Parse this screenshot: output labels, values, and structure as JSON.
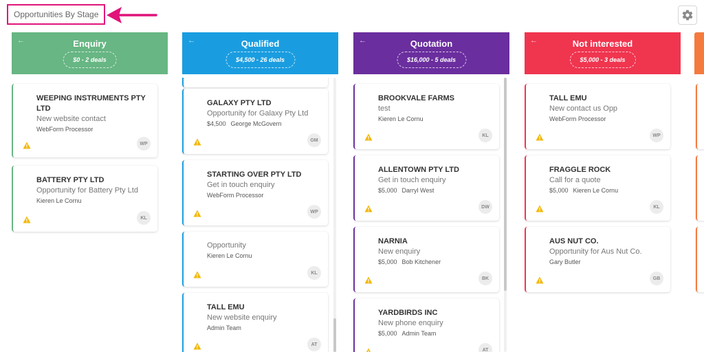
{
  "page": {
    "title": "Opportunities By Stage"
  },
  "icons": {
    "settings": "gear-icon",
    "back": "back-arrow-icon",
    "warning": "warning-icon",
    "annotation": "pointer-arrow"
  },
  "colors": {
    "enquiry": "#67b683",
    "qualified": "#1a9de0",
    "quotation": "#6a2e9e",
    "not_interested": "#f0354f",
    "next_stage": "#f47a3e",
    "annotation": "#e0147a",
    "warning": "#f2b705"
  },
  "columns": [
    {
      "title": "Enquiry",
      "summary": "$0 - 2 deals",
      "cards": [
        {
          "name": "WEEPING INSTRUMENTS PTY LTD",
          "desc": "New website contact",
          "amount": "",
          "owner": "WebForm Processor",
          "initials": "WP"
        },
        {
          "name": "BATTERY PTY LTD",
          "desc": "Opportunity for Battery Pty Ltd",
          "amount": "",
          "owner": "Kieren Le Cornu",
          "initials": "KL"
        }
      ]
    },
    {
      "title": "Qualified",
      "summary": "$4,500 - 26 deals",
      "cards": [
        {
          "name": "GALAXY PTY LTD",
          "desc": "Opportunity for Galaxy Pty Ltd",
          "amount": "$4,500",
          "owner": "George McGovern",
          "initials": "GM"
        },
        {
          "name": "STARTING OVER PTY LTD",
          "desc": "Get in touch enquiry",
          "amount": "",
          "owner": "WebForm Processor",
          "initials": "WP"
        },
        {
          "name": "",
          "desc": "Opportunity",
          "amount": "",
          "owner": "Kieren Le Cornu",
          "initials": "KL"
        },
        {
          "name": "TALL EMU",
          "desc": "New website enquiry",
          "amount": "",
          "owner": "Admin Team",
          "initials": "AT"
        }
      ]
    },
    {
      "title": "Quotation",
      "summary": "$16,000 - 5 deals",
      "cards": [
        {
          "name": "BROOKVALE FARMS",
          "desc": "test",
          "amount": "",
          "owner": "Kieren Le Cornu",
          "initials": "KL"
        },
        {
          "name": "ALLENTOWN PTY LTD",
          "desc": "Get in touch enquiry",
          "amount": "$5,000",
          "owner": "Darryl West",
          "initials": "DW"
        },
        {
          "name": "NARNIA",
          "desc": "New enquiry",
          "amount": "$5,000",
          "owner": "Bob Kitchener",
          "initials": "BK"
        },
        {
          "name": "YARDBIRDS INC",
          "desc": "New phone enquiry",
          "amount": "$5,000",
          "owner": "Admin Team",
          "initials": "AT"
        }
      ]
    },
    {
      "title": "Not interested",
      "summary": "$5,000 - 3 deals",
      "cards": [
        {
          "name": "TALL EMU",
          "desc": "New contact us Opp",
          "amount": "",
          "owner": "WebForm Processor",
          "initials": "WP"
        },
        {
          "name": "FRAGGLE ROCK",
          "desc": "Call for a quote",
          "amount": "$5,000",
          "owner": "Kieren Le Cornu",
          "initials": "KL"
        },
        {
          "name": "AUS NUT CO.",
          "desc": "Opportunity for Aus Nut Co.",
          "amount": "",
          "owner": "Gary Butler",
          "initials": "GB"
        }
      ]
    }
  ]
}
